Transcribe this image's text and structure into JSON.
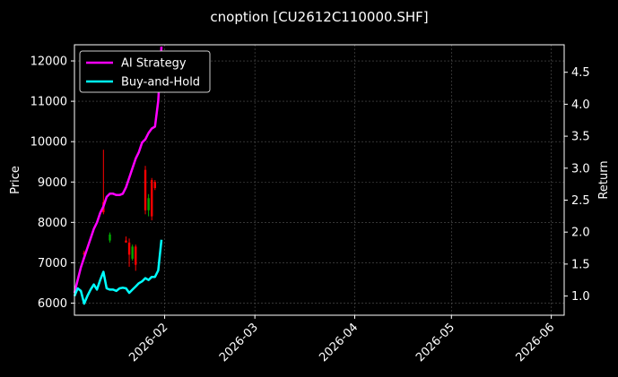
{
  "chart_data": {
    "type": "line",
    "title": "cnoption [CU2612C110000.SHF]",
    "ylabel": "Price",
    "y2label": "Return",
    "x_dates": [
      "2026-01-04",
      "2026-06-05"
    ],
    "xticks": [
      "2026-02",
      "2026-03",
      "2026-04",
      "2026-05",
      "2026-06"
    ],
    "ylim": [
      5700,
      12400
    ],
    "yticks": [
      6000,
      7000,
      8000,
      9000,
      10000,
      11000,
      12000
    ],
    "y2lim": [
      0.7,
      4.93
    ],
    "y2ticks": [
      1.0,
      1.5,
      2.0,
      2.5,
      3.0,
      3.5,
      4.0,
      4.5
    ],
    "grid": true,
    "legend_position": "top-left",
    "colors": {
      "background": "#000000",
      "ai": "#ff00ff",
      "bh": "#00ffff",
      "up": "#00aa00",
      "down": "#ff0000",
      "grid": "#555555",
      "text": "#ffffff"
    },
    "candles": [
      {
        "date": "2026-01-07",
        "open": 7250,
        "high": 7300,
        "low": 7180,
        "close": 7200,
        "color": "down"
      },
      {
        "date": "2026-01-13",
        "open": 8500,
        "high": 9800,
        "low": 8200,
        "close": 8250,
        "color": "down"
      },
      {
        "date": "2026-01-15",
        "open": 7550,
        "high": 7750,
        "low": 7500,
        "close": 7700,
        "color": "up"
      },
      {
        "date": "2026-01-20",
        "open": 7550,
        "high": 7650,
        "low": 7500,
        "close": 7500,
        "color": "down"
      },
      {
        "date": "2026-01-21",
        "open": 7500,
        "high": 7600,
        "low": 6900,
        "close": 7200,
        "color": "down"
      },
      {
        "date": "2026-01-22",
        "open": 7100,
        "high": 7450,
        "low": 7050,
        "close": 7400,
        "color": "up"
      },
      {
        "date": "2026-01-23",
        "open": 7400,
        "high": 7450,
        "low": 6800,
        "close": 6950,
        "color": "down"
      },
      {
        "date": "2026-01-26",
        "open": 9300,
        "high": 9400,
        "low": 8200,
        "close": 8300,
        "color": "down"
      },
      {
        "date": "2026-01-27",
        "open": 8300,
        "high": 8700,
        "low": 8150,
        "close": 8600,
        "color": "up"
      },
      {
        "date": "2026-01-28",
        "open": 9050,
        "high": 9100,
        "low": 8050,
        "close": 8150,
        "color": "down"
      },
      {
        "date": "2026-01-29",
        "open": 9000,
        "high": 9050,
        "low": 8800,
        "close": 8850,
        "color": "down"
      }
    ],
    "series": [
      {
        "name": "AI Strategy",
        "color": "#ff00ff",
        "axis": "right",
        "x": [
          "2026-01-04",
          "2026-01-05",
          "2026-01-06",
          "2026-01-07",
          "2026-01-08",
          "2026-01-09",
          "2026-01-10",
          "2026-01-11",
          "2026-01-12",
          "2026-01-13",
          "2026-01-14",
          "2026-01-15",
          "2026-01-16",
          "2026-01-17",
          "2026-01-18",
          "2026-01-19",
          "2026-01-20",
          "2026-01-21",
          "2026-01-22",
          "2026-01-23",
          "2026-01-24",
          "2026-01-25",
          "2026-01-26",
          "2026-01-27",
          "2026-01-28",
          "2026-01-29",
          "2026-01-30",
          "2026-01-31"
        ],
        "values": [
          1.05,
          1.25,
          1.45,
          1.6,
          1.75,
          1.9,
          2.05,
          2.15,
          2.3,
          2.4,
          2.55,
          2.6,
          2.6,
          2.58,
          2.58,
          2.6,
          2.7,
          2.85,
          3.0,
          3.15,
          3.25,
          3.4,
          3.45,
          3.55,
          3.62,
          3.65,
          4.05,
          4.9
        ]
      },
      {
        "name": "Buy-and-Hold",
        "color": "#00ffff",
        "axis": "right",
        "x": [
          "2026-01-04",
          "2026-01-05",
          "2026-01-06",
          "2026-01-07",
          "2026-01-08",
          "2026-01-09",
          "2026-01-10",
          "2026-01-11",
          "2026-01-12",
          "2026-01-13",
          "2026-01-14",
          "2026-01-15",
          "2026-01-16",
          "2026-01-17",
          "2026-01-18",
          "2026-01-19",
          "2026-01-20",
          "2026-01-21",
          "2026-01-22",
          "2026-01-23",
          "2026-01-24",
          "2026-01-25",
          "2026-01-26",
          "2026-01-27",
          "2026-01-28",
          "2026-01-29",
          "2026-01-30",
          "2026-01-31"
        ],
        "values": [
          1.0,
          1.12,
          1.08,
          0.88,
          1.0,
          1.1,
          1.18,
          1.1,
          1.25,
          1.38,
          1.12,
          1.1,
          1.1,
          1.08,
          1.12,
          1.13,
          1.12,
          1.05,
          1.1,
          1.15,
          1.2,
          1.23,
          1.28,
          1.25,
          1.3,
          1.3,
          1.4,
          1.88
        ]
      }
    ]
  }
}
